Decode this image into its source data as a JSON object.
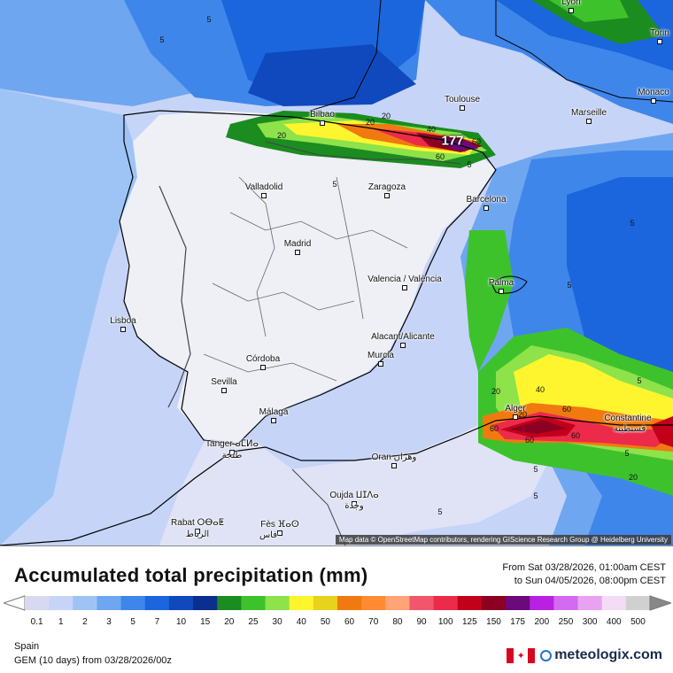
{
  "map": {
    "attribution": "Map data © OpenStreetMap contributors, rendering GIScience Research Group @ Heidelberg University",
    "max_value": "177",
    "cities": [
      {
        "name": "Lyon"
      },
      {
        "name": "Torin"
      },
      {
        "name": "Toulouse"
      },
      {
        "name": "Monaco"
      },
      {
        "name": "Marseille"
      },
      {
        "name": "Bilbao"
      },
      {
        "name": "Valladolid"
      },
      {
        "name": "Zaragoza"
      },
      {
        "name": "Barcelona"
      },
      {
        "name": "Madrid"
      },
      {
        "name": "Valencia / València"
      },
      {
        "name": "Palma"
      },
      {
        "name": "Lisboa"
      },
      {
        "name": "Alacant/Alicante"
      },
      {
        "name": "Murcia"
      },
      {
        "name": "Córdoba"
      },
      {
        "name": "Sevilla"
      },
      {
        "name": "Málaga"
      },
      {
        "name": "Alger"
      },
      {
        "name": "Constantine"
      },
      {
        "name": "قسنطينة"
      },
      {
        "name": "Tanger ⴰⵎⵍⴰ"
      },
      {
        "name": "طنجة"
      },
      {
        "name": "Oran وهران"
      },
      {
        "name": "Oujda ⵡⵊⴷⴰ"
      },
      {
        "name": "وجدة"
      },
      {
        "name": "Rabat ⵔⴱⴰⵟ"
      },
      {
        "name": "الرباط"
      },
      {
        "name": "Fès ⴼⴰⵙ"
      },
      {
        "name": "فاس"
      }
    ],
    "contour_labels": [
      "5",
      "5",
      "20",
      "20",
      "20",
      "40",
      "60",
      "60",
      "5",
      "5",
      "5",
      "5",
      "5",
      "20",
      "40",
      "60",
      "60",
      "60",
      "60",
      "5",
      "20",
      "5",
      "5",
      "5",
      "20"
    ]
  },
  "legend": {
    "title": "Accumulated total precipitation (mm)",
    "period_from": "From Sat 03/28/2026, 01:00am CEST",
    "period_to": "to Sun 04/05/2026, 08:00pm CEST",
    "scale": [
      {
        "label": "0.1",
        "color": "#d8d9f0"
      },
      {
        "label": "1",
        "color": "#c6d4f8"
      },
      {
        "label": "2",
        "color": "#9ec4f6"
      },
      {
        "label": "3",
        "color": "#6fa6f0"
      },
      {
        "label": "5",
        "color": "#3f86ea"
      },
      {
        "label": "7",
        "color": "#1b66dc"
      },
      {
        "label": "10",
        "color": "#0f49bd"
      },
      {
        "label": "15",
        "color": "#0a2f8c"
      },
      {
        "label": "20",
        "color": "#1b8c1f"
      },
      {
        "label": "25",
        "color": "#3dc22c"
      },
      {
        "label": "30",
        "color": "#8ee24a"
      },
      {
        "label": "40",
        "color": "#fff52e"
      },
      {
        "label": "50",
        "color": "#e8d21c"
      },
      {
        "label": "60",
        "color": "#f07a0f"
      },
      {
        "label": "70",
        "color": "#ff8a32"
      },
      {
        "label": "80",
        "color": "#ffa474"
      },
      {
        "label": "90",
        "color": "#f2566d"
      },
      {
        "label": "100",
        "color": "#ec2a4a"
      },
      {
        "label": "125",
        "color": "#c2001a"
      },
      {
        "label": "150",
        "color": "#8c0022"
      },
      {
        "label": "175",
        "color": "#6b0a7a"
      },
      {
        "label": "200",
        "color": "#b821e2"
      },
      {
        "label": "250",
        "color": "#d46af0"
      },
      {
        "label": "300",
        "color": "#e8a2f2"
      },
      {
        "label": "400",
        "color": "#f4dcf6"
      },
      {
        "label": "500",
        "color": "#d0d0d0"
      }
    ]
  },
  "footer": {
    "region": "Spain",
    "model": "GEM (10 days) from 03/28/2026/00z",
    "brand": "meteologix.com"
  }
}
